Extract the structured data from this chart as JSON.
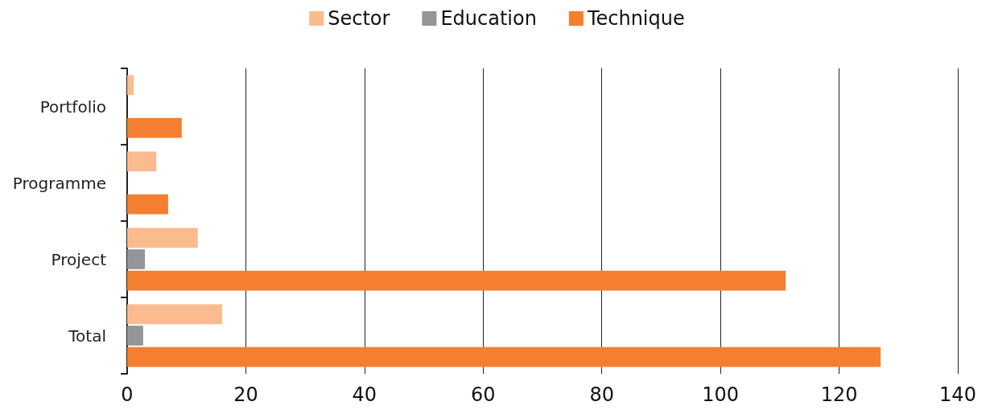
{
  "chart_data": {
    "type": "bar",
    "orientation": "horizontal",
    "categories": [
      "Portfolio",
      "Programme",
      "Project",
      "Total"
    ],
    "series": [
      {
        "name": "Sector",
        "color": "#fbbb8e",
        "values": [
          1.1,
          4.9,
          11.9,
          16
        ]
      },
      {
        "name": "Education",
        "color": "#939598",
        "values": [
          0,
          0,
          3,
          2.7
        ]
      },
      {
        "name": "Technique",
        "color": "#f47f30",
        "values": [
          9.2,
          6.9,
          111,
          127
        ]
      }
    ],
    "xlim": [
      0,
      140
    ],
    "xticks": [
      0,
      20,
      40,
      60,
      80,
      100,
      120,
      140
    ],
    "grid": "x",
    "legend": "top"
  }
}
